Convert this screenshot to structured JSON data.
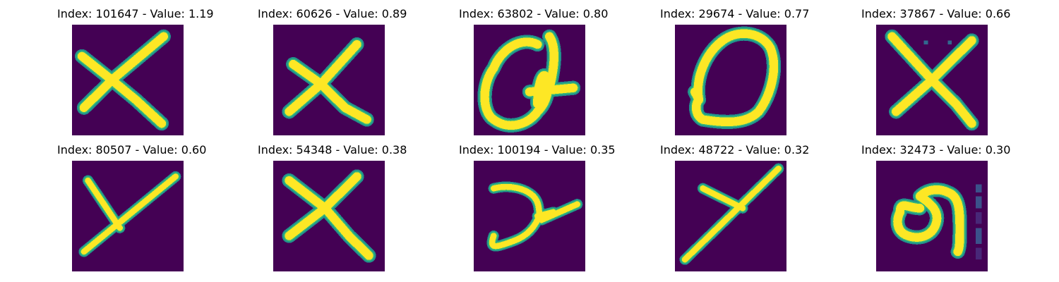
{
  "colors": {
    "background": "#440154",
    "stroke_core": "#fde725",
    "stroke_edge": "#35b779",
    "stroke_halo": "#21918c"
  },
  "panels": [
    {
      "title": "Index: 101647 - Value: 1.19",
      "glyph": "x"
    },
    {
      "title": "Index: 60626 - Value: 0.89",
      "glyph": "x"
    },
    {
      "title": "Index: 63802 - Value: 0.80",
      "glyph": "loop-with-bar"
    },
    {
      "title": "Index: 29674 - Value: 0.77",
      "glyph": "oval"
    },
    {
      "title": "Index: 37867 - Value: 0.66",
      "glyph": "x"
    },
    {
      "title": "Index: 80507 - Value: 0.60",
      "glyph": "y"
    },
    {
      "title": "Index: 54348 - Value: 0.38",
      "glyph": "x"
    },
    {
      "title": "Index: 100194 - Value: 0.35",
      "glyph": "cup-y"
    },
    {
      "title": "Index: 48722 - Value: 0.32",
      "glyph": "y"
    },
    {
      "title": "Index: 32473 - Value: 0.30",
      "glyph": "hook"
    }
  ]
}
